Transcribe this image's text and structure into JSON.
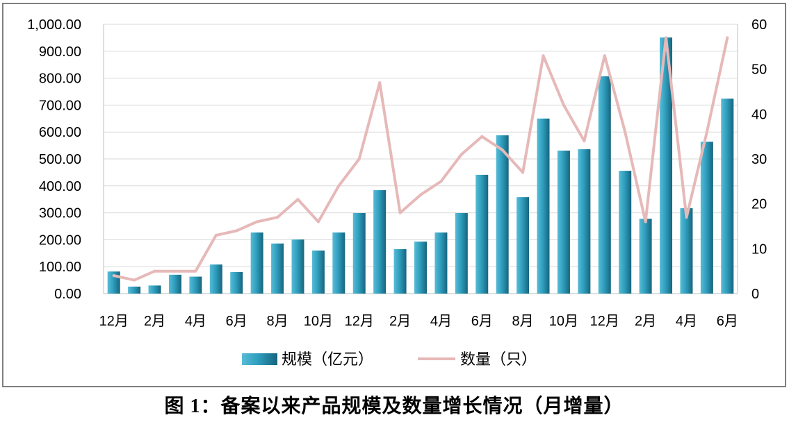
{
  "chart_data": {
    "type": "bar",
    "categories": [
      "12月",
      "",
      "2月",
      "",
      "4月",
      "",
      "6月",
      "",
      "8月",
      "",
      "10月",
      "",
      "12月",
      "",
      "2月",
      "",
      "4月",
      "",
      "6月",
      "",
      "8月",
      "",
      "10月",
      "",
      "12月",
      "",
      "2月",
      "",
      "4月",
      "",
      "6月"
    ],
    "series": [
      {
        "name": "规模（亿元）",
        "type": "bar",
        "axis": "left",
        "color": "#2F9EBE",
        "values": [
          82,
          26,
          30,
          70,
          63,
          108,
          80,
          227,
          186,
          201,
          160,
          227,
          299,
          384,
          165,
          193,
          227,
          299,
          441,
          588,
          358,
          650,
          531,
          536,
          807,
          456,
          278,
          951,
          317,
          564,
          724
        ]
      },
      {
        "name": "数量（只）",
        "type": "line",
        "axis": "right",
        "color": "#E6B9B8",
        "values": [
          4,
          3,
          5,
          5,
          5,
          13,
          14,
          16,
          17,
          21,
          16,
          24,
          30,
          47,
          18,
          22,
          25,
          31,
          35,
          32,
          27,
          53,
          42,
          34,
          53,
          36,
          16,
          57,
          17,
          36,
          57
        ]
      }
    ],
    "y_left": {
      "range": [
        0,
        1000
      ],
      "tick_labels": [
        "0.00",
        "100.00",
        "200.00",
        "300.00",
        "400.00",
        "500.00",
        "600.00",
        "700.00",
        "800.00",
        "900.00",
        "1,000.00"
      ]
    },
    "y_right": {
      "range": [
        0,
        60
      ],
      "tick_labels": [
        "0",
        "10",
        "20",
        "30",
        "40",
        "50",
        "60"
      ]
    },
    "grid": true,
    "legend": "bottom-center",
    "caption": "图 1：备案以来产品规模及数量增长情况（月增量）"
  }
}
